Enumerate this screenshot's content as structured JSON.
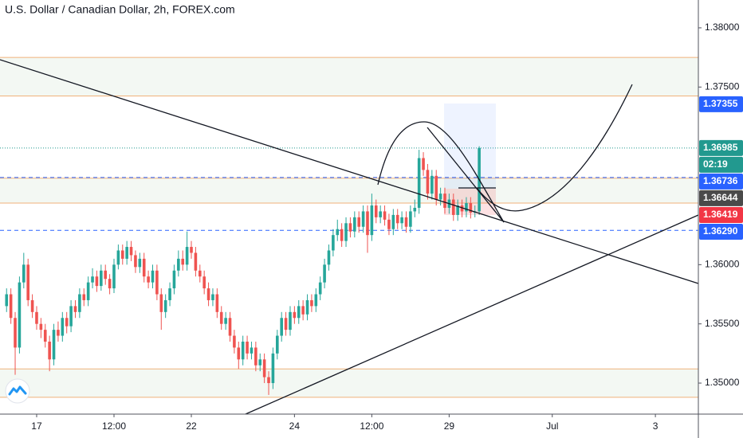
{
  "chart_data": {
    "type": "candlestick",
    "title": "U.S. Dollar / Canadian Dollar, 2h, FOREX.com",
    "up_color": "#26a69a",
    "down_color": "#ef5350",
    "xlim": [
      -8.53,
      154
    ],
    "xticks": [
      {
        "value": 0,
        "label": "17"
      },
      {
        "value": 18,
        "label": "12:00"
      },
      {
        "value": 36,
        "label": "22"
      },
      {
        "value": 60,
        "label": "24"
      },
      {
        "value": 78,
        "label": "12:00"
      },
      {
        "value": 96,
        "label": "29"
      },
      {
        "value": 120,
        "label": "Jul"
      },
      {
        "value": 144,
        "label": "3"
      }
    ],
    "ylim": [
      1.34738,
      1.38235
    ],
    "yticks": [
      {
        "value": 1.38,
        "label": "1.38000"
      },
      {
        "value": 1.375,
        "label": "1.37500"
      },
      {
        "value": 1.36,
        "label": "1.36000"
      },
      {
        "value": 1.355,
        "label": "1.35500"
      },
      {
        "value": 1.35,
        "label": "1.35000"
      }
    ],
    "x": [
      -7,
      -6,
      -5,
      -4,
      -3,
      -2,
      -1,
      0,
      1,
      2,
      3,
      4,
      5,
      6,
      7,
      8,
      9,
      10,
      11,
      12,
      13,
      14,
      15,
      16,
      17,
      18,
      19,
      20,
      21,
      22,
      23,
      24,
      25,
      26,
      27,
      28,
      29,
      30,
      31,
      32,
      33,
      34,
      35,
      36,
      37,
      38,
      39,
      40,
      41,
      42,
      43,
      44,
      45,
      46,
      47,
      48,
      49,
      50,
      51,
      52,
      53,
      54,
      55,
      56,
      57,
      58,
      59,
      60,
      61,
      62,
      63,
      64,
      65,
      66,
      67,
      68,
      69,
      70,
      71,
      72,
      73,
      74,
      75,
      76,
      77,
      78,
      79,
      80,
      81,
      82,
      83,
      84,
      85,
      86,
      87,
      88,
      89,
      90,
      91,
      92,
      93,
      94,
      95,
      96,
      97,
      98,
      99,
      100,
      101,
      102,
      103
    ],
    "open": [
      1.3565,
      1.3575,
      1.3555,
      1.353,
      1.3585,
      1.36,
      1.357,
      1.356,
      1.355,
      1.3545,
      1.3535,
      1.352,
      1.3545,
      1.354,
      1.3555,
      1.3548,
      1.3565,
      1.356,
      1.3575,
      1.357,
      1.3585,
      1.359,
      1.3582,
      1.3595,
      1.3588,
      1.358,
      1.36,
      1.3612,
      1.3605,
      1.3615,
      1.3608,
      1.3598,
      1.3605,
      1.359,
      1.3585,
      1.3595,
      1.3575,
      1.356,
      1.357,
      1.358,
      1.3595,
      1.3605,
      1.36,
      1.3615,
      1.361,
      1.3595,
      1.359,
      1.358,
      1.357,
      1.3575,
      1.356,
      1.355,
      1.3555,
      1.354,
      1.353,
      1.352,
      1.3535,
      1.3525,
      1.353,
      1.3515,
      1.352,
      1.3505,
      1.35,
      1.3525,
      1.354,
      1.3555,
      1.3545,
      1.356,
      1.3555,
      1.3565,
      1.3558,
      1.357,
      1.3565,
      1.3575,
      1.3585,
      1.36,
      1.3612,
      1.3625,
      1.363,
      1.362,
      1.3635,
      1.3628,
      1.364,
      1.3632,
      1.3645,
      1.3625,
      1.365,
      1.364,
      1.3645,
      1.3638,
      1.363,
      1.3642,
      1.3635,
      1.364,
      1.3632,
      1.3645,
      1.3648,
      1.369,
      1.368,
      1.366,
      1.3675,
      1.3655,
      1.366,
      1.3648,
      1.3655,
      1.3642,
      1.365,
      1.3645,
      1.3652,
      1.3644,
      1.3645
    ],
    "high": [
      1.358,
      1.358,
      1.356,
      1.359,
      1.361,
      1.3605,
      1.3575,
      1.3565,
      1.3555,
      1.355,
      1.354,
      1.355,
      1.3552,
      1.356,
      1.356,
      1.357,
      1.357,
      1.358,
      1.358,
      1.359,
      1.3597,
      1.3595,
      1.36,
      1.36,
      1.3592,
      1.3605,
      1.3617,
      1.3617,
      1.362,
      1.362,
      1.3612,
      1.361,
      1.361,
      1.3595,
      1.36,
      1.36,
      1.358,
      1.3575,
      1.3585,
      1.36,
      1.3612,
      1.3612,
      1.3628,
      1.362,
      1.3615,
      1.36,
      1.3595,
      1.3585,
      1.358,
      1.358,
      1.3565,
      1.356,
      1.356,
      1.3545,
      1.3535,
      1.354,
      1.354,
      1.3535,
      1.3535,
      1.3525,
      1.3525,
      1.351,
      1.353,
      1.3545,
      1.356,
      1.356,
      1.3565,
      1.3565,
      1.357,
      1.357,
      1.3575,
      1.3575,
      1.358,
      1.359,
      1.3605,
      1.3617,
      1.363,
      1.3638,
      1.3635,
      1.364,
      1.364,
      1.3645,
      1.3645,
      1.365,
      1.365,
      1.366,
      1.3655,
      1.365,
      1.365,
      1.3643,
      1.3647,
      1.3647,
      1.3645,
      1.3645,
      1.365,
      1.3655,
      1.3697,
      1.3695,
      1.3685,
      1.368,
      1.368,
      1.3665,
      1.3665,
      1.366,
      1.366,
      1.3655,
      1.3655,
      1.3657,
      1.3657,
      1.365,
      1.37
    ],
    "low": [
      1.356,
      1.355,
      1.3507,
      1.3525,
      1.358,
      1.3565,
      1.3555,
      1.3545,
      1.3538,
      1.353,
      1.351,
      1.3515,
      1.3535,
      1.3535,
      1.3542,
      1.3543,
      1.3555,
      1.3555,
      1.3565,
      1.3565,
      1.358,
      1.3577,
      1.3578,
      1.3583,
      1.3575,
      1.3576,
      1.3596,
      1.36,
      1.36,
      1.3603,
      1.3593,
      1.3593,
      1.3585,
      1.358,
      1.358,
      1.357,
      1.3545,
      1.3555,
      1.3565,
      1.3575,
      1.359,
      1.3595,
      1.3595,
      1.3605,
      1.359,
      1.3585,
      1.3575,
      1.3565,
      1.3565,
      1.3555,
      1.3545,
      1.3545,
      1.3535,
      1.3525,
      1.3512,
      1.3515,
      1.352,
      1.352,
      1.351,
      1.351,
      1.35,
      1.349,
      1.3495,
      1.352,
      1.3535,
      1.354,
      1.354,
      1.355,
      1.355,
      1.3553,
      1.3553,
      1.356,
      1.356,
      1.357,
      1.358,
      1.3595,
      1.3607,
      1.362,
      1.3615,
      1.3615,
      1.3623,
      1.3623,
      1.3627,
      1.3627,
      1.361,
      1.362,
      1.3635,
      1.3635,
      1.3633,
      1.3625,
      1.3625,
      1.363,
      1.363,
      1.3627,
      1.3627,
      1.364,
      1.3643,
      1.3675,
      1.3655,
      1.3655,
      1.365,
      1.365,
      1.3643,
      1.3643,
      1.3637,
      1.3637,
      1.364,
      1.364,
      1.3639,
      1.364,
      1.3642
    ],
    "close": [
      1.3575,
      1.3555,
      1.353,
      1.3585,
      1.36,
      1.357,
      1.356,
      1.355,
      1.3545,
      1.3535,
      1.352,
      1.3545,
      1.354,
      1.3555,
      1.3548,
      1.3565,
      1.356,
      1.3575,
      1.357,
      1.3585,
      1.359,
      1.3582,
      1.3595,
      1.3588,
      1.358,
      1.36,
      1.3612,
      1.3605,
      1.3615,
      1.3608,
      1.3598,
      1.3605,
      1.359,
      1.3585,
      1.3595,
      1.3575,
      1.356,
      1.357,
      1.358,
      1.3595,
      1.3605,
      1.36,
      1.3615,
      1.361,
      1.3595,
      1.359,
      1.358,
      1.357,
      1.3575,
      1.356,
      1.355,
      1.3555,
      1.354,
      1.353,
      1.352,
      1.3535,
      1.3525,
      1.353,
      1.3515,
      1.352,
      1.3505,
      1.35,
      1.3525,
      1.354,
      1.3555,
      1.3545,
      1.356,
      1.3555,
      1.3565,
      1.3558,
      1.357,
      1.3565,
      1.3575,
      1.3585,
      1.36,
      1.3612,
      1.3625,
      1.363,
      1.362,
      1.3635,
      1.3628,
      1.364,
      1.3632,
      1.3645,
      1.3625,
      1.365,
      1.364,
      1.3645,
      1.3638,
      1.363,
      1.3642,
      1.3635,
      1.364,
      1.3632,
      1.3645,
      1.3648,
      1.369,
      1.368,
      1.366,
      1.3675,
      1.3655,
      1.366,
      1.3648,
      1.3655,
      1.3642,
      1.365,
      1.3645,
      1.3652,
      1.3644,
      1.3645,
      1.36985
    ],
    "zones": [
      {
        "from": 1.37425,
        "to": 1.3775
      },
      {
        "from": 1.3652,
        "to": 1.3673
      },
      {
        "from": 1.3488,
        "to": 1.3512
      }
    ],
    "zone_line_color": "#f0b27a",
    "zone_fill": "#f3f8f3",
    "price_labels": [
      {
        "value": 1.37355,
        "color": "#2962ff"
      },
      {
        "value": 1.36985,
        "color": "#22998f",
        "line": "dotted"
      },
      {
        "value": 1.36736,
        "color": "#2962ff",
        "line": "dashed"
      },
      {
        "value": 1.36644,
        "color": "#4a4a4a"
      },
      {
        "value": 1.36419,
        "color": "#f23645"
      },
      {
        "value": 1.3629,
        "label": "1.36290",
        "color": "#2962ff",
        "line": "dashed"
      }
    ],
    "countdown": "02:19"
  }
}
